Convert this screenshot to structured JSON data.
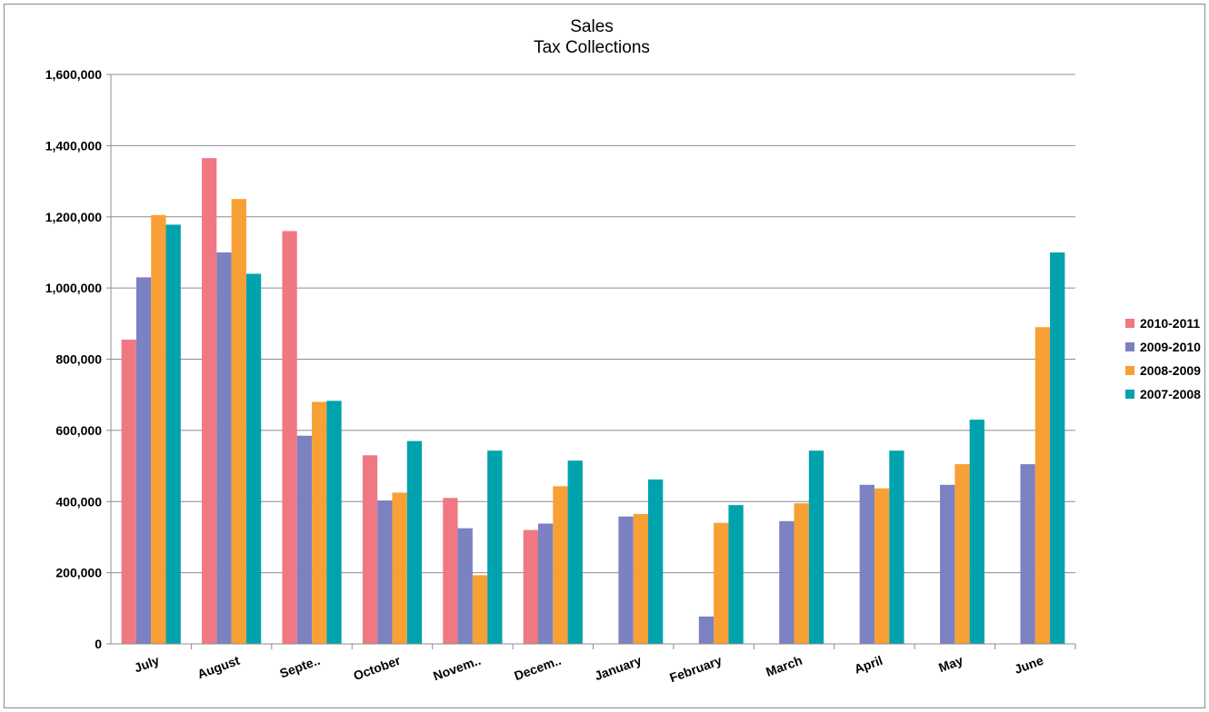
{
  "chart_data": {
    "type": "bar",
    "title": "Sales",
    "subtitle": "Tax Collections",
    "xlabel": "",
    "ylabel": "",
    "ylim": [
      0,
      1600000
    ],
    "yticks": [
      0,
      200000,
      400000,
      600000,
      800000,
      1000000,
      1200000,
      1400000,
      1600000
    ],
    "ytick_labels": [
      "0",
      "200,000",
      "400,000",
      "600,000",
      "800,000",
      "1,000,000",
      "1,200,000",
      "1,400,000",
      "1,600,000"
    ],
    "grid": true,
    "legend_position": "right",
    "categories": [
      "July",
      "August",
      "Septe..",
      "October",
      "Novem..",
      "Decem..",
      "January",
      "February",
      "March",
      "April",
      "May",
      "June"
    ],
    "series": [
      {
        "name": "2010-2011",
        "color": "#f07882",
        "values": [
          855000,
          1365000,
          1160000,
          530000,
          410000,
          320000,
          null,
          null,
          null,
          null,
          null,
          null
        ]
      },
      {
        "name": "2009-2010",
        "color": "#7b81c1",
        "values": [
          1030000,
          1100000,
          585000,
          403000,
          325000,
          338000,
          358000,
          77000,
          345000,
          447000,
          447000,
          505000
        ]
      },
      {
        "name": "2008-2009",
        "color": "#f7a035",
        "values": [
          1205000,
          1250000,
          680000,
          425000,
          193000,
          443000,
          365000,
          340000,
          395000,
          437000,
          505000,
          890000
        ]
      },
      {
        "name": "2007-2008",
        "color": "#00a3ad",
        "values": [
          1178000,
          1040000,
          683000,
          570000,
          543000,
          515000,
          462000,
          390000,
          543000,
          543000,
          630000,
          1100000
        ]
      }
    ]
  }
}
